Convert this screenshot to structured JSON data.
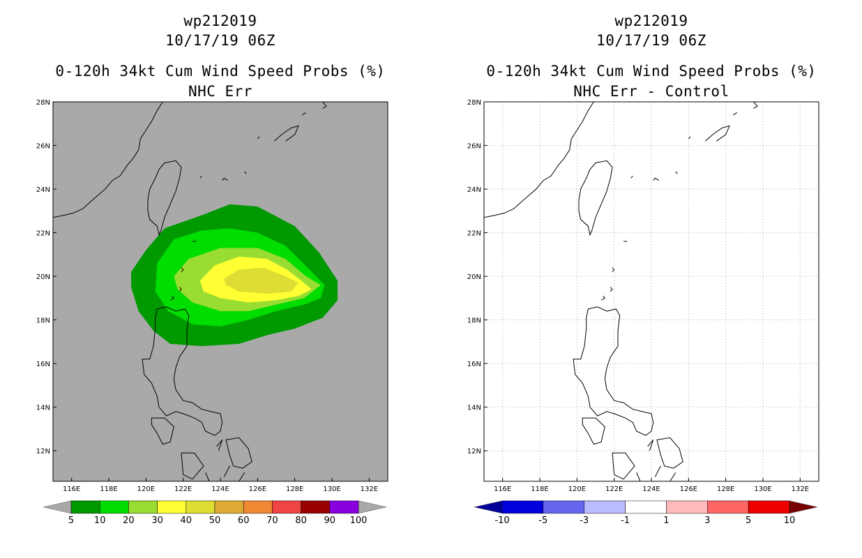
{
  "chart_data": [
    {
      "type": "heatmap",
      "title_lines": [
        "wp212019",
        "10/17/19 06Z",
        "0-120h 34kt Cum Wind Speed Probs (%)",
        "NHC Err"
      ],
      "storm_id": "wp212019",
      "datetime": "10/17/19 06Z",
      "variable": "0-120h 34kt Cum Wind Speed Probs (%)",
      "subtitle": "NHC Err",
      "xlabel": "",
      "ylabel": "",
      "xlim": [
        115,
        133
      ],
      "ylim": [
        10.6,
        28
      ],
      "x_ticks": [
        "116E",
        "118E",
        "120E",
        "122E",
        "124E",
        "126E",
        "128E",
        "130E",
        "132E"
      ],
      "x_tick_values": [
        116,
        118,
        120,
        122,
        124,
        126,
        128,
        130,
        132
      ],
      "y_ticks": [
        "12N",
        "14N",
        "16N",
        "18N",
        "20N",
        "22N",
        "24N",
        "26N",
        "28N"
      ],
      "y_tick_values": [
        12,
        14,
        16,
        18,
        20,
        22,
        24,
        26,
        28
      ],
      "grid": false,
      "background_color": "#a9a9a9",
      "contour_levels": [
        {
          "level": 5,
          "color": "#009900",
          "polygon": [
            [
              120,
              21.2
            ],
            [
              121,
              22.2
            ],
            [
              123,
              22.8
            ],
            [
              124.5,
              23.3
            ],
            [
              126,
              23.2
            ],
            [
              128,
              22.3
            ],
            [
              129.3,
              21.1
            ],
            [
              130.3,
              19.8
            ],
            [
              130.3,
              18.9
            ],
            [
              129.5,
              18.1
            ],
            [
              128,
              17.6
            ],
            [
              126.5,
              17.3
            ],
            [
              125,
              16.9
            ],
            [
              123,
              16.8
            ],
            [
              121.3,
              16.9
            ],
            [
              120.4,
              17.5
            ],
            [
              119.6,
              18.4
            ],
            [
              119.2,
              19.5
            ],
            [
              119.2,
              20.2
            ]
          ]
        },
        {
          "level": 10,
          "color": "#00dd00",
          "polygon": [
            [
              120.6,
              20.6
            ],
            [
              121.5,
              21.7
            ],
            [
              123,
              22.1
            ],
            [
              124.5,
              22.2
            ],
            [
              126,
              22
            ],
            [
              127.5,
              21.4
            ],
            [
              128.8,
              20.3
            ],
            [
              129.6,
              19.6
            ],
            [
              129.4,
              19
            ],
            [
              128.5,
              18.7
            ],
            [
              127,
              18.4
            ],
            [
              125.5,
              18
            ],
            [
              124,
              17.7
            ],
            [
              122.5,
              17.8
            ],
            [
              121.2,
              18.4
            ],
            [
              120.5,
              19.3
            ]
          ]
        },
        {
          "level": 20,
          "color": "#99dd33",
          "polygon": [
            [
              121.5,
              20
            ],
            [
              122.3,
              20.8
            ],
            [
              124,
              21.3
            ],
            [
              126,
              21.3
            ],
            [
              127.5,
              20.8
            ],
            [
              128.6,
              20
            ],
            [
              129.4,
              19.6
            ],
            [
              128.5,
              19
            ],
            [
              127,
              18.7
            ],
            [
              125.5,
              18.4
            ],
            [
              124,
              18.4
            ],
            [
              122.5,
              18.8
            ],
            [
              121.7,
              19.4
            ]
          ]
        },
        {
          "level": 30,
          "color": "#ffff33",
          "polygon": [
            [
              122.9,
              19.8
            ],
            [
              123.7,
              20.5
            ],
            [
              125,
              20.9
            ],
            [
              126.5,
              20.8
            ],
            [
              127.6,
              20.3
            ],
            [
              128.5,
              19.7
            ],
            [
              128.9,
              19.4
            ],
            [
              128.2,
              19.1
            ],
            [
              127,
              18.9
            ],
            [
              125.5,
              18.8
            ],
            [
              124,
              19
            ],
            [
              123.1,
              19.3
            ]
          ]
        },
        {
          "level": 40,
          "color": "#dddd33",
          "polygon": [
            [
              124.2,
              19.9
            ],
            [
              125,
              20.3
            ],
            [
              126.3,
              20.4
            ],
            [
              127.5,
              20
            ],
            [
              128.2,
              19.7
            ],
            [
              127.8,
              19.3
            ],
            [
              126.5,
              19.2
            ],
            [
              125,
              19.3
            ],
            [
              124.3,
              19.6
            ]
          ]
        }
      ],
      "colorbar": {
        "labels": [
          "5",
          "10",
          "20",
          "30",
          "40",
          "50",
          "60",
          "70",
          "80",
          "90",
          "100"
        ],
        "colors": [
          "#009900",
          "#00dd00",
          "#99dd33",
          "#ffff33",
          "#dddd33",
          "#ddaa33",
          "#ee8833",
          "#ee4444",
          "#990000",
          "#8800dd"
        ],
        "under_color": "#a9a9a9",
        "over_color": "#a9a9a9"
      }
    },
    {
      "type": "heatmap",
      "title_lines": [
        "wp212019",
        "10/17/19 06Z",
        "0-120h 34kt Cum Wind Speed Probs (%)",
        "NHC Err - Control"
      ],
      "storm_id": "wp212019",
      "datetime": "10/17/19 06Z",
      "variable": "0-120h 34kt Cum Wind Speed Probs (%)",
      "subtitle": "NHC Err - Control",
      "xlabel": "",
      "ylabel": "",
      "xlim": [
        115,
        133
      ],
      "ylim": [
        10.6,
        28
      ],
      "x_ticks": [
        "116E",
        "118E",
        "120E",
        "122E",
        "124E",
        "126E",
        "128E",
        "130E",
        "132E"
      ],
      "x_tick_values": [
        116,
        118,
        120,
        122,
        124,
        126,
        128,
        130,
        132
      ],
      "y_ticks": [
        "12N",
        "14N",
        "16N",
        "18N",
        "20N",
        "22N",
        "24N",
        "26N",
        "28N"
      ],
      "y_tick_values": [
        12,
        14,
        16,
        18,
        20,
        22,
        24,
        26,
        28
      ],
      "grid": true,
      "background_color": "#ffffff",
      "contour_levels": [],
      "colorbar": {
        "labels": [
          "-10",
          "-5",
          "-3",
          "-1",
          "1",
          "3",
          "5",
          "10"
        ],
        "colors": [
          "#0000dd",
          "#6666ee",
          "#bbbbff",
          "#ffffff",
          "#ffbbbb",
          "#ff6666",
          "#ee0000"
        ],
        "under_color": "#000099",
        "over_color": "#770000"
      }
    }
  ],
  "coastlines": {
    "china": [
      [
        115,
        22.7
      ],
      [
        115.6,
        22.8
      ],
      [
        116.1,
        22.9
      ],
      [
        116.6,
        23.1
      ],
      [
        117,
        23.4
      ],
      [
        117.4,
        23.7
      ],
      [
        117.8,
        24
      ],
      [
        118.2,
        24.4
      ],
      [
        118.6,
        24.6
      ],
      [
        119,
        25.1
      ],
      [
        119.3,
        25.4
      ],
      [
        119.6,
        25.8
      ],
      [
        119.7,
        26.3
      ],
      [
        120,
        26.7
      ],
      [
        120.3,
        27.1
      ],
      [
        120.6,
        27.6
      ],
      [
        120.9,
        28
      ]
    ],
    "taiwan": [
      [
        121,
        25.2
      ],
      [
        121.6,
        25.3
      ],
      [
        121.9,
        25
      ],
      [
        121.8,
        24.5
      ],
      [
        121.6,
        23.9
      ],
      [
        121.3,
        23.3
      ],
      [
        121,
        22.7
      ],
      [
        120.8,
        22.1
      ],
      [
        120.7,
        21.9
      ],
      [
        120.6,
        22.3
      ],
      [
        120.2,
        22.6
      ],
      [
        120.1,
        23
      ],
      [
        120.1,
        23.5
      ],
      [
        120.2,
        24
      ],
      [
        120.5,
        24.5
      ],
      [
        120.7,
        24.9
      ]
    ],
    "luzon": [
      [
        120.6,
        18.5
      ],
      [
        121.1,
        18.6
      ],
      [
        121.6,
        18.4
      ],
      [
        122.1,
        18.5
      ],
      [
        122.3,
        18.2
      ],
      [
        122.2,
        17.5
      ],
      [
        122.2,
        16.8
      ],
      [
        121.8,
        16.3
      ],
      [
        121.6,
        15.8
      ],
      [
        121.5,
        15.3
      ],
      [
        121.6,
        14.8
      ],
      [
        122,
        14.3
      ],
      [
        122.5,
        14.2
      ],
      [
        123,
        13.9
      ],
      [
        123.5,
        13.8
      ],
      [
        124,
        13.7
      ],
      [
        124.1,
        13.3
      ],
      [
        124,
        12.9
      ],
      [
        123.7,
        12.7
      ],
      [
        123.2,
        12.9
      ],
      [
        123,
        13.3
      ],
      [
        122.6,
        13.5
      ],
      [
        122,
        13.7
      ],
      [
        121.6,
        13.8
      ],
      [
        121.1,
        13.6
      ],
      [
        120.7,
        14
      ],
      [
        120.6,
        14.5
      ],
      [
        120.3,
        15.1
      ],
      [
        119.9,
        15.5
      ],
      [
        119.8,
        16.2
      ],
      [
        120.2,
        16.2
      ],
      [
        120.4,
        16.8
      ],
      [
        120.5,
        17.6
      ],
      [
        120.5,
        18.1
      ]
    ],
    "mindoro": [
      [
        120.3,
        13.5
      ],
      [
        121,
        13.5
      ],
      [
        121.5,
        13.1
      ],
      [
        121.3,
        12.4
      ],
      [
        120.9,
        12.3
      ],
      [
        120.6,
        12.8
      ],
      [
        120.3,
        13.2
      ]
    ],
    "samar": [
      [
        124.3,
        12.5
      ],
      [
        125,
        12.6
      ],
      [
        125.5,
        12.1
      ],
      [
        125.7,
        11.5
      ],
      [
        125.2,
        11.2
      ],
      [
        124.7,
        11.3
      ],
      [
        124.5,
        11.8
      ]
    ],
    "panay": [
      [
        121.9,
        11.9
      ],
      [
        122.6,
        11.9
      ],
      [
        123.1,
        11.3
      ],
      [
        122.5,
        10.7
      ],
      [
        122,
        10.9
      ]
    ],
    "small_islands": [
      [
        [
          121.9,
          20.4
        ],
        [
          122,
          20.3
        ],
        [
          121.9,
          20.2
        ]
      ],
      [
        [
          121.8,
          19.5
        ],
        [
          121.9,
          19.4
        ],
        [
          121.8,
          19.3
        ]
      ],
      [
        [
          121.4,
          19.1
        ],
        [
          121.5,
          19
        ],
        [
          121.3,
          18.9
        ]
      ],
      [
        [
          122.5,
          21.6
        ],
        [
          122.7,
          21.6
        ]
      ],
      [
        [
          124.1,
          24.4
        ],
        [
          124.2,
          24.5
        ],
        [
          124.4,
          24.4
        ]
      ],
      [
        [
          125.3,
          24.8
        ],
        [
          125.4,
          24.7
        ]
      ],
      [
        [
          122.9,
          24.5
        ],
        [
          123,
          24.6
        ]
      ],
      [
        [
          126.9,
          26.2
        ],
        [
          127.3,
          26.5
        ],
        [
          127.8,
          26.8
        ],
        [
          128.2,
          26.9
        ],
        [
          128,
          26.5
        ],
        [
          127.5,
          26.2
        ]
      ],
      [
        [
          128.4,
          27.4
        ],
        [
          128.6,
          27.5
        ]
      ],
      [
        [
          129.5,
          28
        ],
        [
          129.7,
          27.8
        ],
        [
          129.5,
          27.7
        ]
      ],
      [
        [
          126,
          26.3
        ],
        [
          126.1,
          26.4
        ]
      ],
      [
        [
          123.8,
          12.2
        ],
        [
          124.1,
          12.5
        ],
        [
          123.9,
          12
        ]
      ],
      [
        [
          125,
          10.6
        ],
        [
          125.3,
          11
        ]
      ],
      [
        [
          123.2,
          11
        ],
        [
          123.4,
          10.6
        ]
      ],
      [
        [
          124.2,
          10.8
        ],
        [
          124.5,
          11.3
        ]
      ]
    ]
  }
}
